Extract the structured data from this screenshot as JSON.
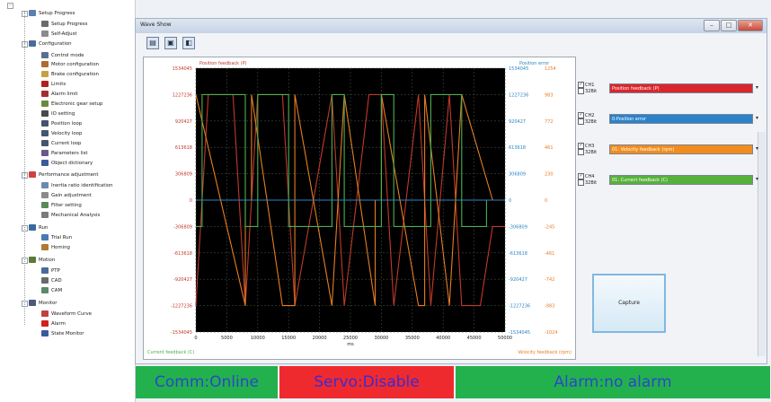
{
  "tree": {
    "items": [
      {
        "label": "Setup Progress",
        "color": "#5b7fb3"
      },
      {
        "label": "Setup Progress",
        "color": "#6b6b6b"
      },
      {
        "label": "Self-Adjust",
        "color": "#8b8b8b"
      },
      {
        "label": "Configuration",
        "color": "#4a6c9c"
      },
      {
        "label": "Control mode",
        "color": "#5a7090"
      },
      {
        "label": "Motor configuration",
        "color": "#b06c30"
      },
      {
        "label": "Brake configuration",
        "color": "#c8a040"
      },
      {
        "label": "Limits",
        "color": "#b02020"
      },
      {
        "label": "Alarm limit",
        "color": "#a03030"
      },
      {
        "label": "Electronic gear setup",
        "color": "#6a8a40"
      },
      {
        "label": "IO setting",
        "color": "#4a4a4a"
      },
      {
        "label": "Position loop",
        "color": "#44556f"
      },
      {
        "label": "Velocity loop",
        "color": "#44556f"
      },
      {
        "label": "Current loop",
        "color": "#44556f"
      },
      {
        "label": "Parameters list",
        "color": "#6a5a8a"
      },
      {
        "label": "Object dictionary",
        "color": "#3a5a9a"
      },
      {
        "label": "Performance adjustment",
        "color": "#d04040"
      },
      {
        "label": "Inertia ratio identification",
        "color": "#6a8ab0"
      },
      {
        "label": "Gain adjustment",
        "color": "#8a8a8a"
      },
      {
        "label": "Filter setting",
        "color": "#5a8a5a"
      },
      {
        "label": "Mechanical Analysis",
        "color": "#7a7a7a"
      },
      {
        "label": "Run",
        "color": "#3a6aa0"
      },
      {
        "label": "Trial Run",
        "color": "#4a7ab0"
      },
      {
        "label": "Homing",
        "color": "#b07a30"
      },
      {
        "label": "Motion",
        "color": "#5a7a3a"
      },
      {
        "label": "PTP",
        "color": "#4a6a9a"
      },
      {
        "label": "CAD",
        "color": "#6a6a6a"
      },
      {
        "label": "CAM",
        "color": "#5a8a6a"
      },
      {
        "label": "Monitor",
        "color": "#4a5a7a"
      },
      {
        "label": "Waveform Curve",
        "color": "#c04040"
      },
      {
        "label": "Alarm",
        "color": "#d02020"
      },
      {
        "label": "State Monitor",
        "color": "#3a5aa0"
      }
    ]
  },
  "window": {
    "title": "Wave Show",
    "buttons": {
      "minimize": "–",
      "maximize": "□",
      "close": "✕"
    }
  },
  "toolbar": {
    "icons": [
      "open-icon",
      "save-icon",
      "export-icon"
    ]
  },
  "plot": {
    "left_axis_title": "Position feedback (P)",
    "right_axis_title": "Position error",
    "bottom_left_label": "Current feedback (C)",
    "bottom_right_label": "Velocity feedback (rpm)",
    "x_unit": "ms",
    "x_ticks": [
      "0",
      "5000",
      "10000",
      "15000",
      "20000",
      "25000",
      "30000",
      "35000",
      "40000",
      "45000",
      "50000"
    ],
    "left_ticks": [
      "1534045",
      "1227236",
      "920427",
      "613618",
      "306809",
      "0",
      "-306809",
      "-613618",
      "-920427",
      "-1227236",
      "-1534045"
    ],
    "right_ticks_a": [
      "1534045",
      "1227236",
      "920427",
      "613618",
      "306809",
      "0",
      "-306809",
      "-613618",
      "-920427",
      "-1227236",
      "-1534045"
    ],
    "right_ticks_b": [
      "1254",
      "983",
      "772",
      "461",
      "230",
      "0",
      "-245",
      "-461",
      "-742",
      "-983",
      "-1024"
    ],
    "colors": {
      "background": "#000000",
      "grid": "#3a4a3a",
      "position": "#c0392b",
      "error": "#2e86c1",
      "velocity": "#e67e22",
      "current": "#4caf50"
    }
  },
  "channels": [
    {
      "label": "CH1",
      "sub": "32Bit",
      "checked": true,
      "value": "Position feedback (P)",
      "color": "#d9262c"
    },
    {
      "label": "CH2",
      "sub": "32Bit",
      "checked": true,
      "value": "0:Position error",
      "color": "#2c82c9"
    },
    {
      "label": "CH3",
      "sub": "32Bit",
      "checked": true,
      "value": "01: Velocity feedback (rpm)",
      "color": "#f28c1e"
    },
    {
      "label": "CH4",
      "sub": "32Bit",
      "checked": true,
      "value": "01: Current feedback (C)",
      "color": "#55b13a"
    }
  ],
  "capture_label": "Capture",
  "status": {
    "comm": "Comm:Online",
    "servo": "Servo:Disable",
    "alarm": "Alarm:no alarm"
  },
  "chart_data": {
    "type": "line",
    "x_unit": "ms",
    "xlim": [
      0,
      50000
    ],
    "ylim": [
      -1534045,
      1534045
    ],
    "grid": true,
    "series": [
      {
        "name": "Position feedback (P)",
        "x": [
          0,
          2000,
          6000,
          8000,
          10000,
          14000,
          16000,
          22000,
          24000,
          28000,
          30000,
          32000,
          36000,
          38000,
          41000,
          43000,
          46000,
          48000,
          50000
        ],
        "values": [
          -1227236,
          1227236,
          1227236,
          -1227236,
          1227236,
          1227236,
          -1227236,
          1227236,
          -1227236,
          1227236,
          1227236,
          -1227236,
          1227236,
          -1227236,
          1227236,
          -1227236,
          -1227236,
          -306809,
          -306809
        ]
      },
      {
        "name": "Velocity feedback (rpm)",
        "x": [
          0,
          8000,
          8000,
          9000,
          9000,
          14000,
          16000,
          16000,
          22000,
          24000,
          29000,
          29000,
          30000,
          30000,
          36000,
          37000,
          37000,
          41000,
          43000,
          48000,
          50000
        ],
        "values": [
          1227236,
          -1227236,
          0,
          0,
          1227236,
          -1227236,
          -1227236,
          1227236,
          -1227236,
          1227236,
          -1227236,
          0,
          0,
          1227236,
          -1227236,
          -1227236,
          1227236,
          -1227236,
          1227236,
          0,
          0
        ]
      },
      {
        "name": "Current feedback (C)",
        "x": [
          0,
          1000,
          1000,
          8000,
          8000,
          10000,
          10000,
          15000,
          15000,
          22000,
          22000,
          24000,
          24000,
          30000,
          30000,
          32000,
          32000,
          38000,
          38000,
          43000,
          43000,
          47000,
          47000,
          50000
        ],
        "values": [
          -306809,
          -306809,
          1227236,
          1227236,
          -306809,
          -306809,
          1227236,
          1227236,
          -306809,
          -306809,
          1227236,
          1227236,
          -306809,
          -306809,
          1227236,
          1227236,
          -306809,
          -306809,
          1227236,
          1227236,
          -306809,
          -306809,
          0,
          0
        ]
      },
      {
        "name": "Position error",
        "x": [
          0,
          50000
        ],
        "values": [
          0,
          0
        ]
      }
    ]
  }
}
